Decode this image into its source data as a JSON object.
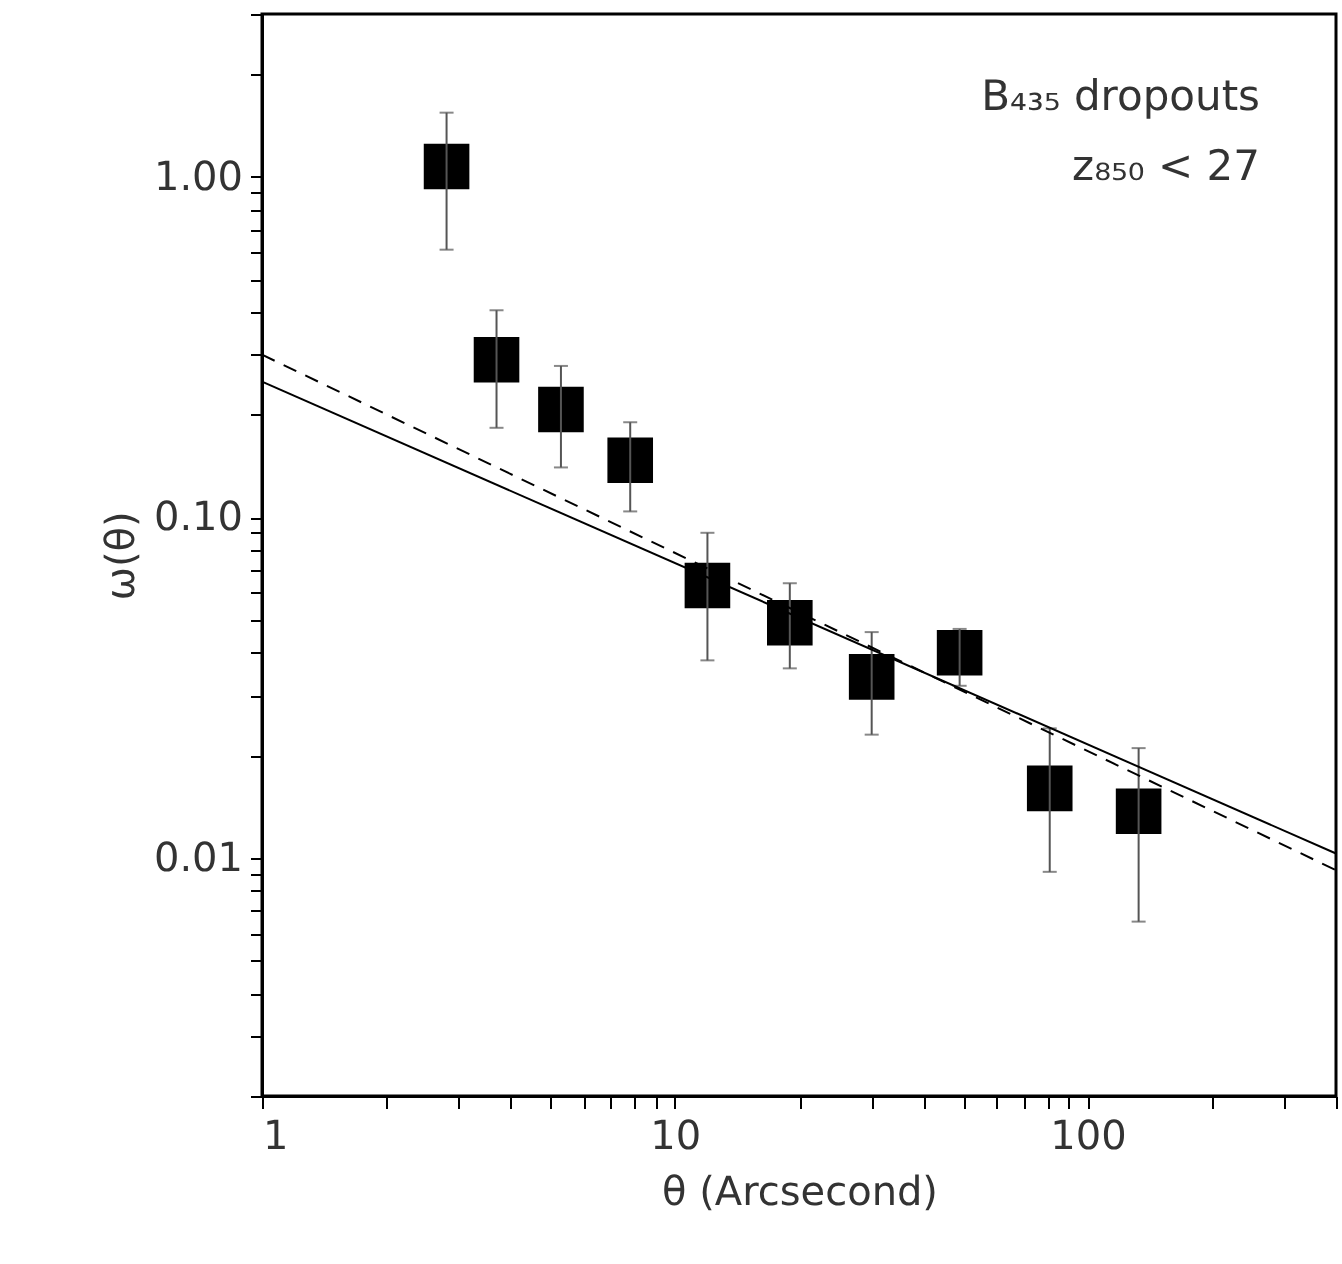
{
  "chart_data": {
    "type": "scatter",
    "xlabel": "θ (Arcsecond)",
    "ylabel": "ω(θ)",
    "annotations": [
      "B₄₃₅ dropouts",
      "z₈₅₀ < 27"
    ],
    "log": "xy",
    "grid": false,
    "xlim": [
      1,
      400
    ],
    "ylim": [
      0.002,
      3
    ],
    "xticks": [
      1,
      {
        "value": 2,
        "label": null
      },
      {
        "value": 3,
        "label": null
      },
      {
        "value": 4,
        "label": null
      },
      {
        "value": 5,
        "label": null
      },
      {
        "value": 6,
        "label": null
      },
      {
        "value": 7,
        "label": null
      },
      {
        "value": 8,
        "label": null
      },
      {
        "value": 9,
        "label": null
      },
      10,
      {
        "value": 20,
        "label": null
      },
      {
        "value": 30,
        "label": null
      },
      {
        "value": 40,
        "label": null
      },
      {
        "value": 50,
        "label": null
      },
      {
        "value": 60,
        "label": null
      },
      {
        "value": 70,
        "label": null
      },
      {
        "value": 80,
        "label": null
      },
      {
        "value": 90,
        "label": null
      },
      100,
      {
        "value": 200,
        "label": null
      },
      {
        "value": 300,
        "label": null
      },
      {
        "value": 400,
        "label": null
      }
    ],
    "yticks": [
      {
        "value": 0.002,
        "label": null
      },
      {
        "value": 0.003,
        "label": null
      },
      {
        "value": 0.004,
        "label": null
      },
      {
        "value": 0.005,
        "label": null
      },
      {
        "value": 0.006,
        "label": null
      },
      {
        "value": 0.007,
        "label": null
      },
      {
        "value": 0.008,
        "label": null
      },
      {
        "value": 0.009,
        "label": null
      },
      0.01,
      {
        "value": 0.02,
        "label": null
      },
      {
        "value": 0.03,
        "label": null
      },
      {
        "value": 0.04,
        "label": null
      },
      {
        "value": 0.05,
        "label": null
      },
      {
        "value": 0.06,
        "label": null
      },
      {
        "value": 0.07,
        "label": null
      },
      {
        "value": 0.08,
        "label": null
      },
      {
        "value": 0.09,
        "label": null
      },
      {
        "value": 0.1,
        "label": "0.10"
      },
      {
        "value": 0.2,
        "label": null
      },
      {
        "value": 0.3,
        "label": null
      },
      {
        "value": 0.4,
        "label": null
      },
      {
        "value": 0.5,
        "label": null
      },
      {
        "value": 0.6,
        "label": null
      },
      {
        "value": 0.7,
        "label": null
      },
      {
        "value": 0.8,
        "label": null
      },
      {
        "value": 0.9,
        "label": null
      },
      {
        "value": 1,
        "label": "1.00"
      },
      {
        "value": 2,
        "label": null
      },
      {
        "value": 3,
        "label": null
      }
    ],
    "series": [
      {
        "type": "scatter",
        "color": "#000000",
        "marker": "square",
        "x": [
          2.8,
          3.7,
          5.3,
          7.8,
          12,
          19,
          30,
          49,
          81,
          133
        ],
        "values": [
          1.07,
          0.29,
          0.207,
          0.147,
          0.063,
          0.049,
          0.034,
          0.04,
          0.016,
          0.0137
        ],
        "errors": [
          [
            0.61,
            1.54
          ],
          [
            0.183,
            0.405
          ],
          [
            0.14,
            0.278
          ],
          [
            0.104,
            0.19
          ],
          [
            0.038,
            0.09
          ],
          [
            0.036,
            0.064
          ],
          [
            0.023,
            0.046
          ],
          [
            0.032,
            0.047
          ],
          [
            0.0091,
            0.024
          ],
          [
            0.0065,
            0.021
          ]
        ]
      },
      {
        "type": "line",
        "color": "#000000",
        "line_style": "solid",
        "marker": "none",
        "x": [
          1,
          400
        ],
        "values": [
          0.25,
          0.0103
        ]
      },
      {
        "type": "line",
        "color": "#000000",
        "line_style": "dashed",
        "marker": "none",
        "x": [
          1,
          400
        ],
        "values": [
          0.3,
          0.0092
        ]
      }
    ]
  }
}
